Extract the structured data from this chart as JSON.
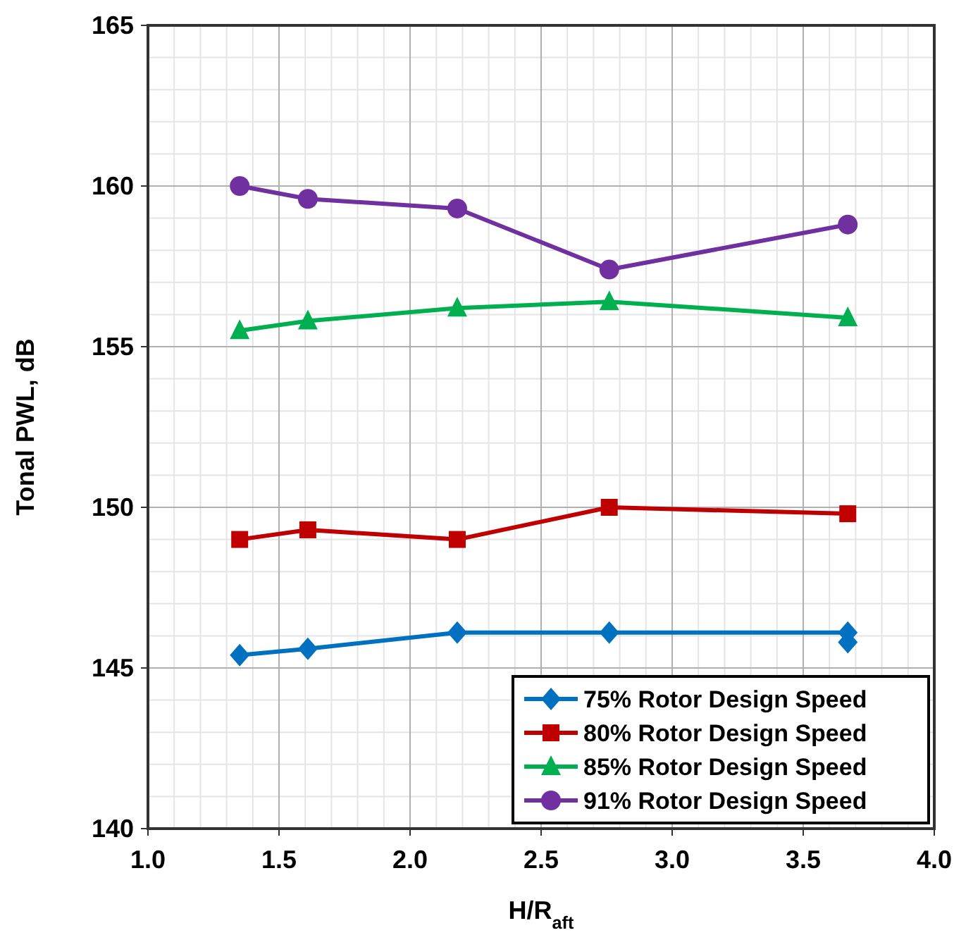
{
  "chart_data": {
    "type": "line",
    "xlabel": "H/R$_{aft}$",
    "ylabel": "Tonal PWL, dB",
    "xlim": [
      1.0,
      4.0
    ],
    "xticks": [
      {
        "value": 1.0,
        "label": "1.0"
      },
      {
        "value": 1.5,
        "label": "1.5"
      },
      {
        "value": 2.0,
        "label": "2.0"
      },
      {
        "value": 2.5,
        "label": "2.5"
      },
      {
        "value": 3.0,
        "label": "3.0"
      },
      {
        "value": 3.5,
        "label": "3.5"
      },
      {
        "value": 4.0,
        "label": "4.0"
      }
    ],
    "ylim": [
      140,
      165
    ],
    "yticks": [
      140,
      145,
      150,
      155,
      160,
      165
    ],
    "grid": true,
    "legend": "bottom right",
    "series": [
      {
        "name": "75% Rotor Design Speed",
        "color": "#0070c0",
        "marker": "diamond",
        "x": [
          1.35,
          1.61,
          2.18,
          2.76,
          3.67,
          3.67
        ],
        "values": [
          145.4,
          145.6,
          146.1,
          146.1,
          146.1,
          145.8
        ]
      },
      {
        "name": "80% Rotor Design Speed",
        "color": "#c00000",
        "marker": "square",
        "x": [
          1.35,
          1.61,
          2.18,
          2.76,
          3.67
        ],
        "values": [
          149.0,
          149.3,
          149.0,
          150.0,
          149.8
        ]
      },
      {
        "name": "85% Rotor Design Speed",
        "color": "#00b050",
        "marker": "triangle",
        "x": [
          1.35,
          1.61,
          2.18,
          2.76,
          3.67
        ],
        "values": [
          155.5,
          155.8,
          156.2,
          156.4,
          155.9
        ]
      },
      {
        "name": "91% Rotor Design Speed",
        "color": "#7030a0",
        "marker": "circle",
        "x": [
          1.35,
          1.61,
          2.18,
          2.76,
          3.67
        ],
        "values": [
          160.0,
          159.6,
          159.3,
          157.4,
          158.8
        ]
      }
    ]
  }
}
